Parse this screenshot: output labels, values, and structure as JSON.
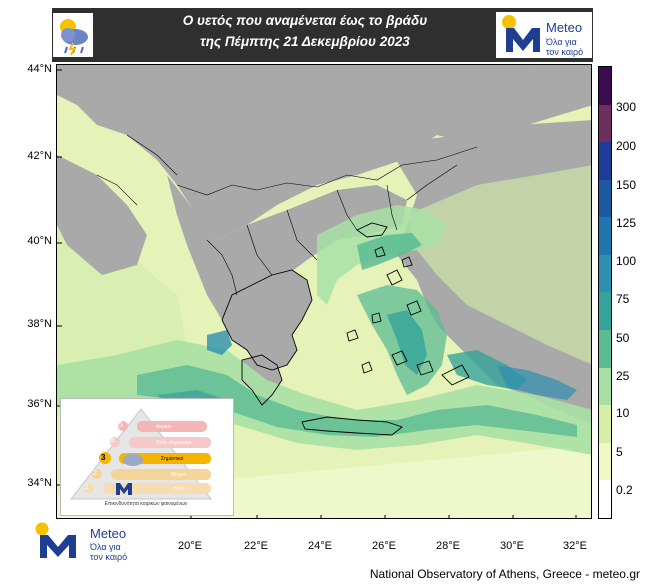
{
  "header": {
    "title_line1": "Ο υετός που αναμένεται έως το βράδυ",
    "title_line2": "της Πέμπτης 21 Δεκεμβρίου 2023",
    "weather_icon": "rain-cloud-icon"
  },
  "brand": {
    "name": "Meteo",
    "tagline_1": "Όλα για",
    "tagline_2": "τον καιρό",
    "logo_icon": "meteo-m-logo-icon"
  },
  "map": {
    "latitudes": [
      "44°N",
      "42°N",
      "40°N",
      "38°N",
      "36°N",
      "34°N"
    ],
    "longitudes": [
      "20°E",
      "22°E",
      "24°E",
      "26°E",
      "28°E",
      "30°E",
      "32°E"
    ],
    "land_color": "#a9a9a9",
    "sea_color": "#e5f3b8"
  },
  "colorbar": {
    "levels": [
      "300",
      "200",
      "150",
      "125",
      "100",
      "75",
      "50",
      "25",
      "10",
      "5",
      "0.2"
    ],
    "colors": [
      "#3b0b4f",
      "#6e2f5e",
      "#1c3c9c",
      "#1d59a0",
      "#2176af",
      "#2f8fb0",
      "#35a39a",
      "#5bbc93",
      "#a8e0a4",
      "#d6efa6",
      "#f0f8c6",
      "#ffffff"
    ]
  },
  "legend": {
    "levels": [
      "5",
      "4",
      "3",
      "2",
      "1"
    ],
    "labels": [
      "Ακραίο",
      "Πολύ σημαντικό",
      "Σημαντικό",
      "Μέτριο",
      "Ήπιο"
    ],
    "caption": "Επικινδυνότητα καιρικών φαινομένων",
    "active_level": "3"
  },
  "footer": {
    "credit": "National Observatory of Athens, Greece - meteo.gr"
  }
}
